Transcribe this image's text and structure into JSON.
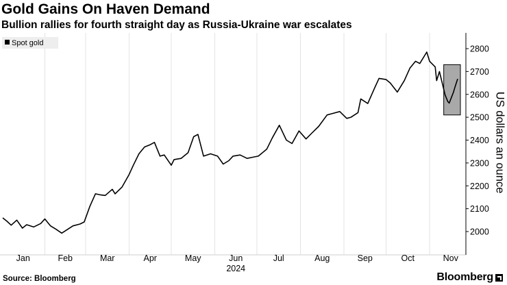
{
  "header": {
    "title": "Gold Gains On Haven Demand",
    "subtitle": "Bullion rallies for fourth straight day as Russia-Ukraine war escalates"
  },
  "footer": {
    "source": "Source: Bloomberg",
    "brand": "Bloomberg"
  },
  "chart_data": {
    "type": "line",
    "title": "Gold Gains On Haven Demand",
    "subtitle": "Bullion rallies for fourth straight day as Russia-Ukraine war escalates",
    "ylabel": "US dollars an ounce",
    "xlabel": "2024",
    "ylim": [
      1950,
      2850
    ],
    "y_ticks": [
      2000,
      2100,
      2200,
      2300,
      2400,
      2500,
      2600,
      2700,
      2800
    ],
    "x_ticks": [
      "Jan",
      "Feb",
      "Mar",
      "Apr",
      "May",
      "Jun",
      "Jul",
      "Aug",
      "Sep",
      "Oct",
      "Nov"
    ],
    "x_range": [
      "2024-01-01",
      "2024-11-21"
    ],
    "year_label": "2024",
    "grid": "vertical",
    "axis_position": "right",
    "legend": {
      "position": "top-left",
      "entries": [
        "Spot gold"
      ]
    },
    "series": [
      {
        "name": "Spot gold",
        "color": "#000000",
        "x": [
          "2024-01-02",
          "2024-01-05",
          "2024-01-08",
          "2024-01-12",
          "2024-01-16",
          "2024-01-19",
          "2024-01-24",
          "2024-01-29",
          "2024-02-01",
          "2024-02-05",
          "2024-02-09",
          "2024-02-13",
          "2024-02-16",
          "2024-02-21",
          "2024-02-26",
          "2024-02-29",
          "2024-03-04",
          "2024-03-08",
          "2024-03-12",
          "2024-03-15",
          "2024-03-20",
          "2024-03-22",
          "2024-03-27",
          "2024-04-01",
          "2024-04-04",
          "2024-04-08",
          "2024-04-12",
          "2024-04-16",
          "2024-04-19",
          "2024-04-23",
          "2024-04-26",
          "2024-05-01",
          "2024-05-03",
          "2024-05-08",
          "2024-05-13",
          "2024-05-17",
          "2024-05-20",
          "2024-05-24",
          "2024-05-29",
          "2024-06-03",
          "2024-06-07",
          "2024-06-11",
          "2024-06-14",
          "2024-06-19",
          "2024-06-24",
          "2024-06-28",
          "2024-07-02",
          "2024-07-08",
          "2024-07-12",
          "2024-07-17",
          "2024-07-22",
          "2024-07-26",
          "2024-07-31",
          "2024-08-05",
          "2024-08-09",
          "2024-08-14",
          "2024-08-20",
          "2024-08-23",
          "2024-08-29",
          "2024-09-03",
          "2024-09-06",
          "2024-09-11",
          "2024-09-13",
          "2024-09-18",
          "2024-09-23",
          "2024-09-26",
          "2024-10-01",
          "2024-10-04",
          "2024-10-09",
          "2024-10-14",
          "2024-10-18",
          "2024-10-22",
          "2024-10-25",
          "2024-10-30",
          "2024-11-01",
          "2024-11-05",
          "2024-11-06",
          "2024-11-08",
          "2024-11-12",
          "2024-11-14",
          "2024-11-15",
          "2024-11-18",
          "2024-11-19",
          "2024-11-20",
          "2024-11-21"
        ],
        "values": [
          2060,
          2045,
          2028,
          2050,
          2015,
          2030,
          2020,
          2035,
          2055,
          2025,
          2010,
          1993,
          2005,
          2025,
          2033,
          2042,
          2110,
          2165,
          2160,
          2158,
          2185,
          2165,
          2195,
          2250,
          2290,
          2340,
          2370,
          2380,
          2390,
          2330,
          2335,
          2290,
          2315,
          2320,
          2345,
          2415,
          2425,
          2330,
          2340,
          2330,
          2295,
          2310,
          2330,
          2335,
          2320,
          2325,
          2330,
          2360,
          2410,
          2465,
          2400,
          2385,
          2440,
          2405,
          2430,
          2460,
          2510,
          2515,
          2525,
          2495,
          2500,
          2520,
          2580,
          2560,
          2630,
          2670,
          2665,
          2650,
          2610,
          2660,
          2715,
          2745,
          2735,
          2785,
          2745,
          2720,
          2660,
          2700,
          2598,
          2568,
          2562,
          2610,
          2630,
          2650,
          2668
        ]
      }
    ],
    "highlight": {
      "x_start": "2024-11-14",
      "x_end": "2024-11-21",
      "y_range": [
        2510,
        2730
      ]
    }
  }
}
